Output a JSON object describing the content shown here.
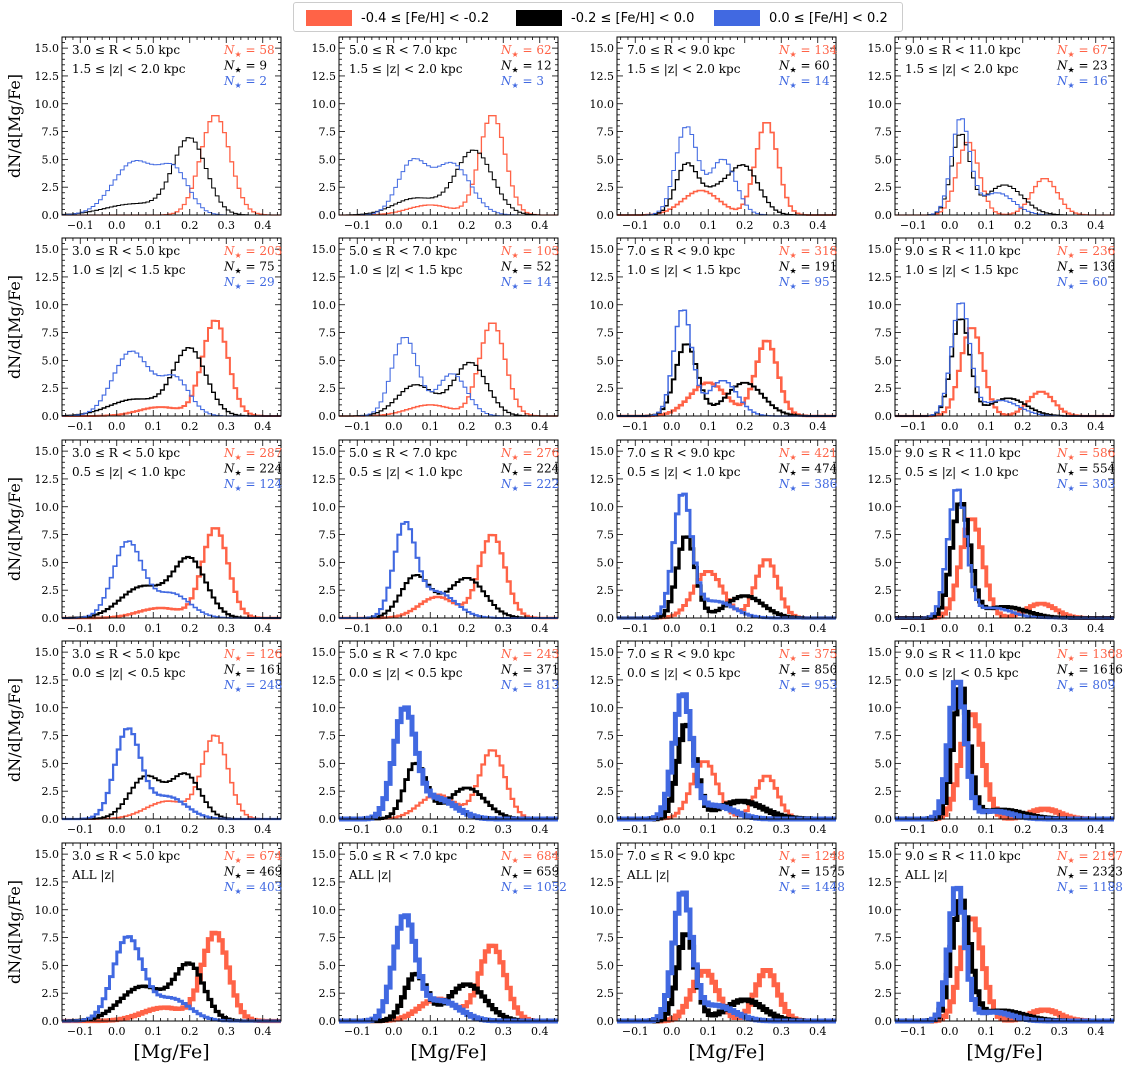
{
  "legend": [
    {
      "label": "-0.4 ≤ [Fe/H] < -0.2",
      "color": "#ff6347"
    },
    {
      "label": "-0.2 ≤ [Fe/H] < 0.0",
      "color": "#000000"
    },
    {
      "label": "0.0 ≤ [Fe/H] < 0.2",
      "color": "#4169e1"
    }
  ],
  "xlabel": "[Mg/Fe]",
  "ylabel": "dN/d[Mg/Fe]",
  "xticks": [
    "−0.1",
    "0.0",
    "0.1",
    "0.2",
    "0.3",
    "0.4"
  ],
  "yticks": [
    "0.0",
    "2.5",
    "5.0",
    "7.5",
    "10.0",
    "12.5",
    "15.0"
  ],
  "chart_data": {
    "type": "line",
    "xlim": [
      -0.15,
      0.45
    ],
    "ylim": [
      0,
      16
    ],
    "x_labels": [
      "3.0 ≤ R < 5.0 kpc",
      "5.0 ≤ R < 7.0 kpc",
      "7.0 ≤ R < 9.0 kpc",
      "9.0 ≤ R < 11.0 kpc"
    ],
    "y_labels": [
      "1.5 ≤ |z| < 2.0 kpc",
      "1.0 ≤ |z| < 1.5 kpc",
      "0.5 ≤ |z| < 1.0 kpc",
      "0.0 ≤ |z| < 0.5 kpc",
      "ALL |z|"
    ],
    "counts": [
      [
        [
          58,
          9,
          2
        ],
        [
          62,
          12,
          3
        ],
        [
          134,
          60,
          14
        ],
        [
          67,
          23,
          16
        ]
      ],
      [
        [
          203,
          75,
          29
        ],
        [
          103,
          52,
          14
        ],
        [
          318,
          191,
          95
        ],
        [
          236,
          130,
          60
        ]
      ],
      [
        [
          287,
          224,
          124
        ],
        [
          276,
          224,
          222
        ],
        [
          421,
          474,
          386
        ],
        [
          586,
          554,
          303
        ]
      ],
      [
        [
          126,
          161,
          248
        ],
        [
          243,
          371,
          813
        ],
        [
          375,
          850,
          953
        ],
        [
          1308,
          1616,
          809
        ]
      ],
      [
        [
          674,
          469,
          403
        ],
        [
          684,
          659,
          1052
        ],
        [
          1248,
          1575,
          1448
        ],
        [
          2197,
          2323,
          1188
        ]
      ]
    ],
    "peaks": [
      [
        {
          "red": [
            [
              0.27,
              9.0,
              0.04
            ]
          ],
          "black": [
            [
              0.2,
              6.8,
              0.045
            ],
            [
              0.05,
              1.0,
              0.08
            ]
          ],
          "blue": [
            [
              0.05,
              4.8,
              0.06
            ],
            [
              0.16,
              3.5,
              0.04
            ]
          ]
        },
        {
          "red": [
            [
              0.27,
              9.0,
              0.035
            ],
            [
              0.1,
              0.9,
              0.06
            ]
          ],
          "black": [
            [
              0.22,
              5.8,
              0.05
            ],
            [
              0.06,
              1.5,
              0.06
            ]
          ],
          "blue": [
            [
              0.05,
              4.6,
              0.04
            ],
            [
              0.16,
              4.6,
              0.05
            ]
          ]
        },
        {
          "red": [
            [
              0.26,
              8.4,
              0.03
            ],
            [
              0.08,
              2.2,
              0.05
            ]
          ],
          "black": [
            [
              0.04,
              4.4,
              0.03
            ],
            [
              0.2,
              4.2,
              0.04
            ],
            [
              0.12,
              2.0,
              0.04
            ]
          ],
          "blue": [
            [
              0.04,
              7.9,
              0.03
            ],
            [
              0.14,
              5.0,
              0.035
            ]
          ]
        },
        {
          "red": [
            [
              0.05,
              6.6,
              0.03
            ],
            [
              0.26,
              3.3,
              0.035
            ]
          ],
          "black": [
            [
              0.03,
              7.2,
              0.025
            ],
            [
              0.15,
              2.7,
              0.05
            ]
          ],
          "blue": [
            [
              0.03,
              8.6,
              0.025
            ],
            [
              0.13,
              2.0,
              0.045
            ]
          ]
        }
      ],
      [
        {
          "red": [
            [
              0.27,
              8.6,
              0.035
            ],
            [
              0.12,
              0.8,
              0.06
            ]
          ],
          "black": [
            [
              0.2,
              6.0,
              0.045
            ],
            [
              0.05,
              1.5,
              0.07
            ]
          ],
          "blue": [
            [
              0.04,
              5.8,
              0.05
            ],
            [
              0.16,
              3.3,
              0.04
            ]
          ]
        },
        {
          "red": [
            [
              0.27,
              8.4,
              0.035
            ],
            [
              0.1,
              1.0,
              0.06
            ]
          ],
          "black": [
            [
              0.21,
              4.8,
              0.045
            ],
            [
              0.06,
              2.8,
              0.05
            ]
          ],
          "blue": [
            [
              0.03,
              7.1,
              0.035
            ],
            [
              0.16,
              3.8,
              0.04
            ]
          ]
        },
        {
          "red": [
            [
              0.26,
              6.8,
              0.03
            ],
            [
              0.1,
              3.0,
              0.05
            ]
          ],
          "black": [
            [
              0.04,
              6.5,
              0.03
            ],
            [
              0.2,
              3.0,
              0.05
            ]
          ],
          "blue": [
            [
              0.03,
              9.6,
              0.025
            ],
            [
              0.14,
              3.2,
              0.04
            ]
          ]
        },
        {
          "red": [
            [
              0.06,
              8.0,
              0.03
            ],
            [
              0.25,
              2.2,
              0.035
            ]
          ],
          "black": [
            [
              0.03,
              8.8,
              0.025
            ],
            [
              0.16,
              1.6,
              0.05
            ]
          ],
          "blue": [
            [
              0.03,
              10.2,
              0.025
            ],
            [
              0.14,
              1.4,
              0.05
            ]
          ]
        }
      ],
      [
        {
          "red": [
            [
              0.27,
              8.1,
              0.035
            ],
            [
              0.12,
              0.9,
              0.06
            ]
          ],
          "black": [
            [
              0.2,
              5.2,
              0.045
            ],
            [
              0.07,
              2.8,
              0.06
            ]
          ],
          "blue": [
            [
              0.03,
              6.8,
              0.04
            ],
            [
              0.15,
              2.2,
              0.05
            ]
          ]
        },
        {
          "red": [
            [
              0.27,
              7.5,
              0.035
            ],
            [
              0.12,
              1.9,
              0.05
            ]
          ],
          "black": [
            [
              0.06,
              3.8,
              0.04
            ],
            [
              0.2,
              3.6,
              0.05
            ]
          ],
          "blue": [
            [
              0.03,
              8.2,
              0.03
            ],
            [
              0.12,
              2.3,
              0.05
            ]
          ]
        },
        {
          "red": [
            [
              0.1,
              4.2,
              0.04
            ],
            [
              0.26,
              5.3,
              0.03
            ]
          ],
          "black": [
            [
              0.04,
              7.4,
              0.025
            ],
            [
              0.2,
              2.0,
              0.05
            ]
          ],
          "blue": [
            [
              0.03,
              11.0,
              0.025
            ],
            [
              0.12,
              1.5,
              0.05
            ]
          ]
        },
        {
          "red": [
            [
              0.06,
              9.0,
              0.03
            ],
            [
              0.25,
              1.3,
              0.04
            ]
          ],
          "black": [
            [
              0.03,
              10.3,
              0.025
            ],
            [
              0.15,
              1.0,
              0.06
            ]
          ],
          "blue": [
            [
              0.02,
              11.6,
              0.025
            ],
            [
              0.12,
              0.9,
              0.05
            ]
          ]
        }
      ],
      [
        {
          "red": [
            [
              0.27,
              7.4,
              0.035
            ],
            [
              0.14,
              1.6,
              0.06
            ]
          ],
          "black": [
            [
              0.08,
              3.8,
              0.045
            ],
            [
              0.19,
              3.9,
              0.04
            ]
          ],
          "blue": [
            [
              0.03,
              8.0,
              0.035
            ],
            [
              0.14,
              2.0,
              0.05
            ]
          ]
        },
        {
          "red": [
            [
              0.27,
              6.2,
              0.035
            ],
            [
              0.12,
              2.2,
              0.05
            ]
          ],
          "black": [
            [
              0.06,
              5.0,
              0.03
            ],
            [
              0.2,
              2.8,
              0.05
            ]
          ],
          "blue": [
            [
              0.03,
              9.7,
              0.03
            ],
            [
              0.12,
              1.8,
              0.05
            ]
          ]
        },
        {
          "red": [
            [
              0.09,
              5.2,
              0.035
            ],
            [
              0.26,
              3.9,
              0.03
            ]
          ],
          "black": [
            [
              0.04,
              8.5,
              0.025
            ],
            [
              0.19,
              1.6,
              0.06
            ]
          ],
          "blue": [
            [
              0.03,
              11.1,
              0.025
            ],
            [
              0.12,
              1.2,
              0.05
            ]
          ]
        },
        {
          "red": [
            [
              0.06,
              9.5,
              0.03
            ],
            [
              0.26,
              0.9,
              0.04
            ]
          ],
          "black": [
            [
              0.03,
              11.8,
              0.022
            ],
            [
              0.14,
              0.8,
              0.06
            ]
          ],
          "blue": [
            [
              0.02,
              12.5,
              0.022
            ],
            [
              0.12,
              0.7,
              0.05
            ]
          ]
        }
      ],
      [
        {
          "red": [
            [
              0.27,
              7.9,
              0.035
            ],
            [
              0.13,
              1.2,
              0.06
            ]
          ],
          "black": [
            [
              0.2,
              4.9,
              0.04
            ],
            [
              0.07,
              3.1,
              0.06
            ]
          ],
          "blue": [
            [
              0.03,
              7.5,
              0.04
            ],
            [
              0.15,
              2.0,
              0.05
            ]
          ]
        },
        {
          "red": [
            [
              0.27,
              6.8,
              0.035
            ],
            [
              0.12,
              2.0,
              0.05
            ]
          ],
          "black": [
            [
              0.06,
              4.2,
              0.03
            ],
            [
              0.2,
              3.3,
              0.05
            ]
          ],
          "blue": [
            [
              0.03,
              9.3,
              0.03
            ],
            [
              0.13,
              1.8,
              0.05
            ]
          ]
        },
        {
          "red": [
            [
              0.09,
              4.5,
              0.035
            ],
            [
              0.26,
              4.6,
              0.03
            ]
          ],
          "black": [
            [
              0.04,
              7.9,
              0.025
            ],
            [
              0.2,
              1.9,
              0.05
            ]
          ],
          "blue": [
            [
              0.03,
              11.4,
              0.025
            ],
            [
              0.12,
              1.4,
              0.05
            ]
          ]
        },
        {
          "red": [
            [
              0.06,
              9.3,
              0.03
            ],
            [
              0.26,
              1.0,
              0.04
            ]
          ],
          "black": [
            [
              0.03,
              10.8,
              0.025
            ],
            [
              0.14,
              0.9,
              0.06
            ]
          ],
          "blue": [
            [
              0.02,
              12.1,
              0.022
            ],
            [
              0.12,
              0.8,
              0.05
            ]
          ]
        }
      ]
    ]
  }
}
